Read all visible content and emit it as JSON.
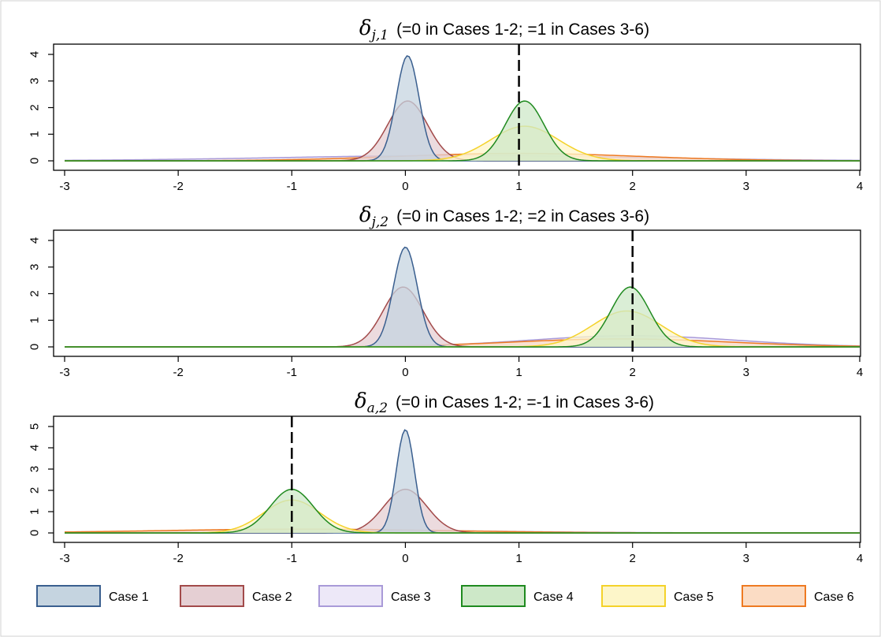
{
  "chart_data": [
    {
      "type": "area",
      "title": {
        "symbol": "δ",
        "subscript": "j,1",
        "text": "(=0 in Cases 1-2;  =1 in Cases 3-6)"
      },
      "xlim": [
        -3,
        4
      ],
      "ylim": [
        0,
        4
      ],
      "xticks": [
        -3,
        -2,
        -1,
        0,
        1,
        2,
        3,
        4
      ],
      "yticks": [
        0,
        1,
        2,
        3,
        4
      ],
      "reference_line_x": 1,
      "grid": false,
      "series": [
        {
          "name": "Case 1",
          "mean": 0.02,
          "sd": 0.1,
          "peak": 3.95
        },
        {
          "name": "Case 2",
          "mean": 0.02,
          "sd": 0.175,
          "peak": 2.25
        },
        {
          "name": "Case 3",
          "mean": 0.5,
          "sd": 1.6,
          "peak": 0.2
        },
        {
          "name": "Case 4",
          "mean": 1.05,
          "sd": 0.17,
          "peak": 2.25
        },
        {
          "name": "Case 5",
          "mean": 1.05,
          "sd": 0.3,
          "peak": 1.3
        },
        {
          "name": "Case 6",
          "mean": 1.0,
          "sd": 1.05,
          "peak": 0.28
        }
      ]
    },
    {
      "type": "area",
      "title": {
        "symbol": "δ",
        "subscript": "j,2",
        "text": "(=0 in Cases 1-2;  =2 in Cases 3-6)"
      },
      "xlim": [
        -3,
        4
      ],
      "ylim": [
        0,
        4
      ],
      "xticks": [
        -3,
        -2,
        -1,
        0,
        1,
        2,
        3,
        4
      ],
      "yticks": [
        0,
        1,
        2,
        3,
        4
      ],
      "reference_line_x": 2,
      "grid": false,
      "series": [
        {
          "name": "Case 1",
          "mean": 0.0,
          "sd": 0.105,
          "peak": 3.75
        },
        {
          "name": "Case 2",
          "mean": -0.02,
          "sd": 0.175,
          "peak": 2.25
        },
        {
          "name": "Case 3",
          "mean": 2.0,
          "sd": 0.9,
          "peak": 0.42
        },
        {
          "name": "Case 4",
          "mean": 1.98,
          "sd": 0.17,
          "peak": 2.25
        },
        {
          "name": "Case 5",
          "mean": 1.95,
          "sd": 0.3,
          "peak": 1.35
        },
        {
          "name": "Case 6",
          "mean": 1.9,
          "sd": 0.95,
          "peak": 0.3
        }
      ]
    },
    {
      "type": "area",
      "title": {
        "symbol": "δ",
        "subscript": "a,2",
        "text": "(=0 in Cases 1-2;  =-1 in Cases 3-6)"
      },
      "xlim": [
        -3,
        4
      ],
      "ylim": [
        0,
        5
      ],
      "xticks": [
        -3,
        -2,
        -1,
        0,
        1,
        2,
        3,
        4
      ],
      "yticks": [
        0,
        1,
        2,
        3,
        4,
        5
      ],
      "reference_line_x": -1,
      "grid": false,
      "series": [
        {
          "name": "Case 1",
          "mean": 0.0,
          "sd": 0.08,
          "peak": 4.85
        },
        {
          "name": "Case 2",
          "mean": 0.0,
          "sd": 0.19,
          "peak": 2.05
        },
        {
          "name": "Case 3",
          "mean": -0.8,
          "sd": 1.4,
          "peak": 0.15
        },
        {
          "name": "Case 4",
          "mean": -1.0,
          "sd": 0.19,
          "peak": 2.05
        },
        {
          "name": "Case 5",
          "mean": -1.0,
          "sd": 0.25,
          "peak": 1.55
        },
        {
          "name": "Case 6",
          "mean": -0.9,
          "sd": 1.25,
          "peak": 0.18
        }
      ]
    }
  ],
  "legend": {
    "placement": "bottom",
    "items": [
      {
        "label": "Case 1",
        "stroke": "#3a5f8f",
        "fill": "#c5d4e0"
      },
      {
        "label": "Case 2",
        "stroke": "#a24a4a",
        "fill": "#e5cfd3"
      },
      {
        "label": "Case 3",
        "stroke": "#a99ad8",
        "fill": "#ede8f8"
      },
      {
        "label": "Case 4",
        "stroke": "#1f8a1f",
        "fill": "#cde8c8"
      },
      {
        "label": "Case 5",
        "stroke": "#f4d22a",
        "fill": "#fdf6c9"
      },
      {
        "label": "Case 6",
        "stroke": "#ee7a22",
        "fill": "#fbdcc4"
      }
    ]
  }
}
